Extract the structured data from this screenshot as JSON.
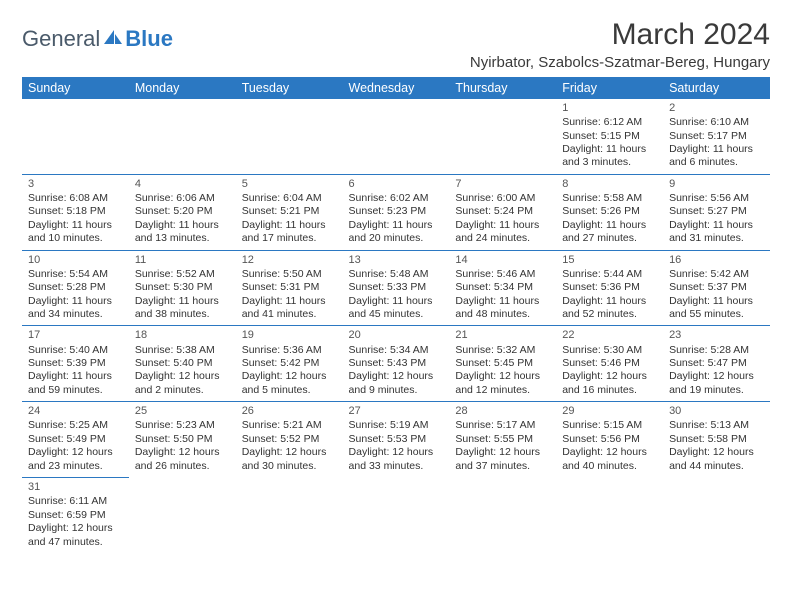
{
  "logo": {
    "part1": "General",
    "part2": "Blue"
  },
  "title": "March 2024",
  "location": "Nyirbator, Szabolcs-Szatmar-Bereg, Hungary",
  "colors": {
    "header_bg": "#2b78c2",
    "header_text": "#ffffff",
    "border": "#2b78c2",
    "text": "#333333",
    "logo_gray": "#4a5a6a",
    "logo_blue": "#2b78c2"
  },
  "weekdays": [
    "Sunday",
    "Monday",
    "Tuesday",
    "Wednesday",
    "Thursday",
    "Friday",
    "Saturday"
  ],
  "structure": {
    "type": "calendar",
    "month": 3,
    "year": 2024,
    "first_weekday_index": 5,
    "days_in_month": 31,
    "rows": 6,
    "cols": 7,
    "cell_fontsize_pt": 8,
    "header_fontsize_pt": 9.5,
    "title_fontsize_pt": 22
  },
  "days": {
    "1": {
      "sunrise": "6:12 AM",
      "sunset": "5:15 PM",
      "daylight": "11 hours and 3 minutes."
    },
    "2": {
      "sunrise": "6:10 AM",
      "sunset": "5:17 PM",
      "daylight": "11 hours and 6 minutes."
    },
    "3": {
      "sunrise": "6:08 AM",
      "sunset": "5:18 PM",
      "daylight": "11 hours and 10 minutes."
    },
    "4": {
      "sunrise": "6:06 AM",
      "sunset": "5:20 PM",
      "daylight": "11 hours and 13 minutes."
    },
    "5": {
      "sunrise": "6:04 AM",
      "sunset": "5:21 PM",
      "daylight": "11 hours and 17 minutes."
    },
    "6": {
      "sunrise": "6:02 AM",
      "sunset": "5:23 PM",
      "daylight": "11 hours and 20 minutes."
    },
    "7": {
      "sunrise": "6:00 AM",
      "sunset": "5:24 PM",
      "daylight": "11 hours and 24 minutes."
    },
    "8": {
      "sunrise": "5:58 AM",
      "sunset": "5:26 PM",
      "daylight": "11 hours and 27 minutes."
    },
    "9": {
      "sunrise": "5:56 AM",
      "sunset": "5:27 PM",
      "daylight": "11 hours and 31 minutes."
    },
    "10": {
      "sunrise": "5:54 AM",
      "sunset": "5:28 PM",
      "daylight": "11 hours and 34 minutes."
    },
    "11": {
      "sunrise": "5:52 AM",
      "sunset": "5:30 PM",
      "daylight": "11 hours and 38 minutes."
    },
    "12": {
      "sunrise": "5:50 AM",
      "sunset": "5:31 PM",
      "daylight": "11 hours and 41 minutes."
    },
    "13": {
      "sunrise": "5:48 AM",
      "sunset": "5:33 PM",
      "daylight": "11 hours and 45 minutes."
    },
    "14": {
      "sunrise": "5:46 AM",
      "sunset": "5:34 PM",
      "daylight": "11 hours and 48 minutes."
    },
    "15": {
      "sunrise": "5:44 AM",
      "sunset": "5:36 PM",
      "daylight": "11 hours and 52 minutes."
    },
    "16": {
      "sunrise": "5:42 AM",
      "sunset": "5:37 PM",
      "daylight": "11 hours and 55 minutes."
    },
    "17": {
      "sunrise": "5:40 AM",
      "sunset": "5:39 PM",
      "daylight": "11 hours and 59 minutes."
    },
    "18": {
      "sunrise": "5:38 AM",
      "sunset": "5:40 PM",
      "daylight": "12 hours and 2 minutes."
    },
    "19": {
      "sunrise": "5:36 AM",
      "sunset": "5:42 PM",
      "daylight": "12 hours and 5 minutes."
    },
    "20": {
      "sunrise": "5:34 AM",
      "sunset": "5:43 PM",
      "daylight": "12 hours and 9 minutes."
    },
    "21": {
      "sunrise": "5:32 AM",
      "sunset": "5:45 PM",
      "daylight": "12 hours and 12 minutes."
    },
    "22": {
      "sunrise": "5:30 AM",
      "sunset": "5:46 PM",
      "daylight": "12 hours and 16 minutes."
    },
    "23": {
      "sunrise": "5:28 AM",
      "sunset": "5:47 PM",
      "daylight": "12 hours and 19 minutes."
    },
    "24": {
      "sunrise": "5:25 AM",
      "sunset": "5:49 PM",
      "daylight": "12 hours and 23 minutes."
    },
    "25": {
      "sunrise": "5:23 AM",
      "sunset": "5:50 PM",
      "daylight": "12 hours and 26 minutes."
    },
    "26": {
      "sunrise": "5:21 AM",
      "sunset": "5:52 PM",
      "daylight": "12 hours and 30 minutes."
    },
    "27": {
      "sunrise": "5:19 AM",
      "sunset": "5:53 PM",
      "daylight": "12 hours and 33 minutes."
    },
    "28": {
      "sunrise": "5:17 AM",
      "sunset": "5:55 PM",
      "daylight": "12 hours and 37 minutes."
    },
    "29": {
      "sunrise": "5:15 AM",
      "sunset": "5:56 PM",
      "daylight": "12 hours and 40 minutes."
    },
    "30": {
      "sunrise": "5:13 AM",
      "sunset": "5:58 PM",
      "daylight": "12 hours and 44 minutes."
    },
    "31": {
      "sunrise": "6:11 AM",
      "sunset": "6:59 PM",
      "daylight": "12 hours and 47 minutes."
    }
  },
  "labels": {
    "sunrise": "Sunrise: ",
    "sunset": "Sunset: ",
    "daylight": "Daylight: "
  }
}
